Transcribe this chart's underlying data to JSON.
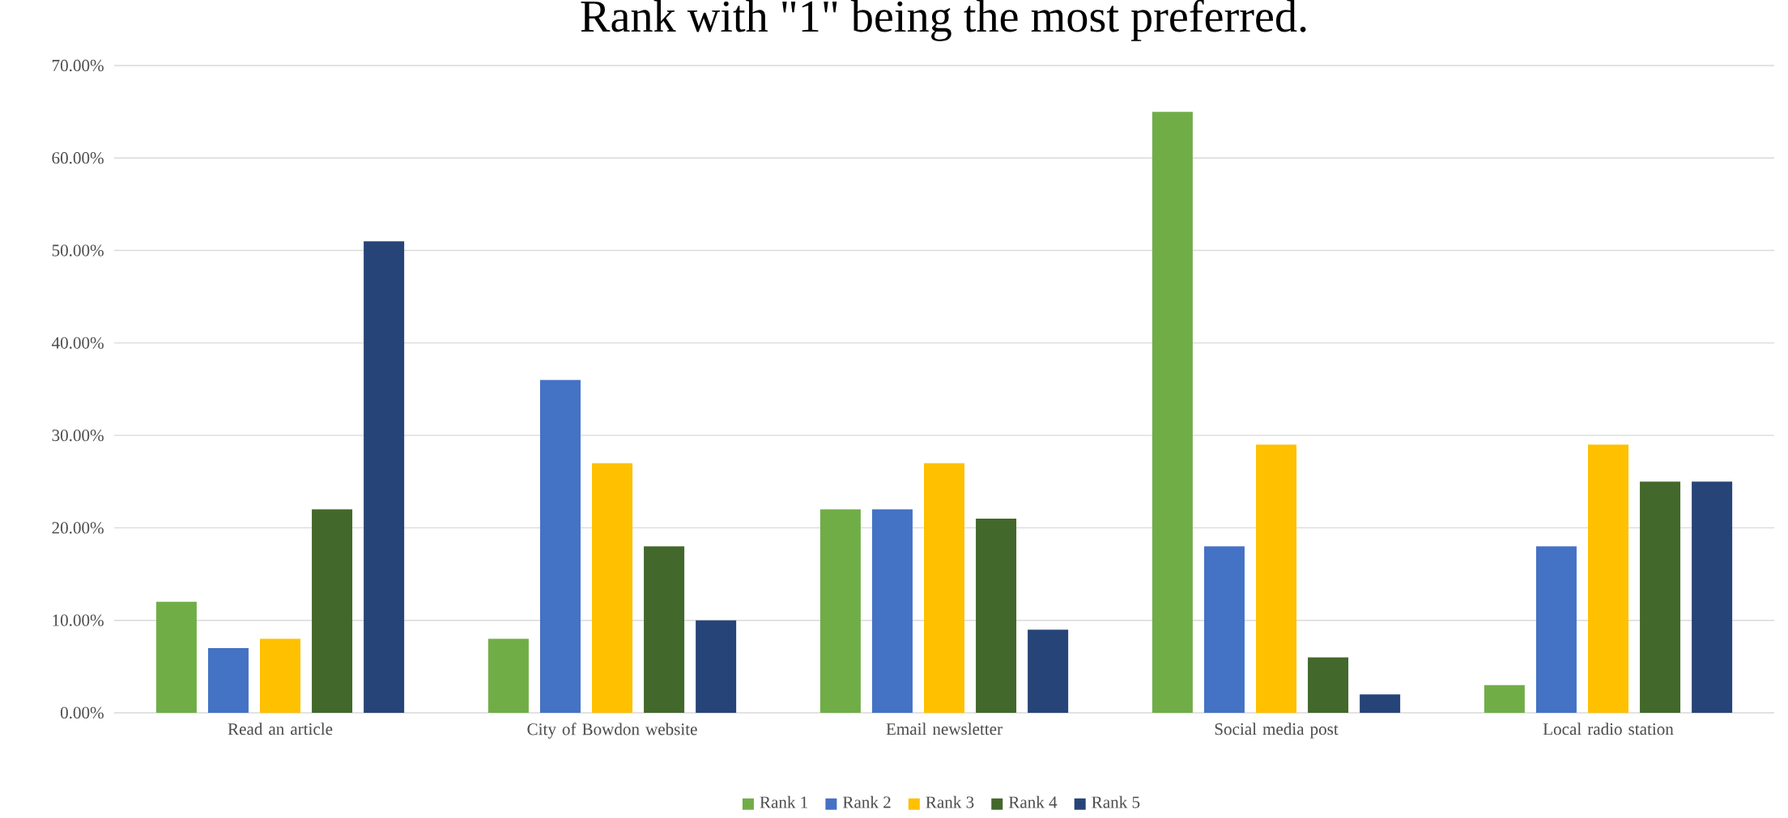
{
  "chart_data": {
    "type": "bar",
    "title": "Rank with \"1\" being the most preferred.",
    "categories": [
      "Read an article",
      "City of Bowdon website",
      "Email newsletter",
      "Social media post",
      "Local radio station"
    ],
    "series": [
      {
        "name": "Rank 1",
        "color": "#70ad47",
        "values": [
          12,
          8,
          22,
          65,
          3
        ]
      },
      {
        "name": "Rank 2",
        "color": "#4472c4",
        "values": [
          7,
          36,
          22,
          18,
          18
        ]
      },
      {
        "name": "Rank 3",
        "color": "#ffc000",
        "values": [
          8,
          27,
          27,
          29,
          29
        ]
      },
      {
        "name": "Rank 4",
        "color": "#43682b",
        "values": [
          22,
          18,
          21,
          6,
          25
        ]
      },
      {
        "name": "Rank 5",
        "color": "#264478",
        "values": [
          51,
          10,
          9,
          2,
          25
        ]
      }
    ],
    "ylim": [
      0,
      70
    ],
    "yticks": [
      {
        "value": 0,
        "label": "0.00%"
      },
      {
        "value": 10,
        "label": "10.00%"
      },
      {
        "value": 20,
        "label": "20.00%"
      },
      {
        "value": 30,
        "label": "30.00%"
      },
      {
        "value": 40,
        "label": "40.00%"
      },
      {
        "value": 50,
        "label": "50.00%"
      },
      {
        "value": 60,
        "label": "60.00%"
      },
      {
        "value": 70,
        "label": "70.00%"
      }
    ],
    "grid": "y",
    "legend": "bottom"
  }
}
